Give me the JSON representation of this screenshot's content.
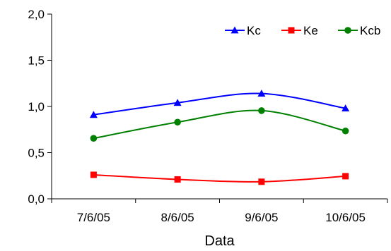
{
  "chart_data": {
    "type": "line",
    "title": "",
    "xlabel": "Data",
    "ylabel": "",
    "categories": [
      "7/6/05",
      "8/6/05",
      "9/6/05",
      "10/6/05"
    ],
    "ylim": [
      0,
      2.0
    ],
    "yticks": [
      "0,0",
      "0,5",
      "1,0",
      "1,5",
      "2,0"
    ],
    "ytick_values": [
      0,
      0.5,
      1.0,
      1.5,
      2.0
    ],
    "grid": false,
    "smooth": true,
    "legend_position": "top-right",
    "series": [
      {
        "name": "Kc",
        "values": [
          0.91,
          1.04,
          1.14,
          0.98
        ],
        "color": "#0000ff",
        "marker": "triangle"
      },
      {
        "name": "Ke",
        "values": [
          0.26,
          0.21,
          0.185,
          0.245
        ],
        "color": "#ff0000",
        "marker": "square"
      },
      {
        "name": "Kcb",
        "values": [
          0.655,
          0.83,
          0.955,
          0.735
        ],
        "color": "#008000",
        "marker": "circle"
      }
    ]
  }
}
